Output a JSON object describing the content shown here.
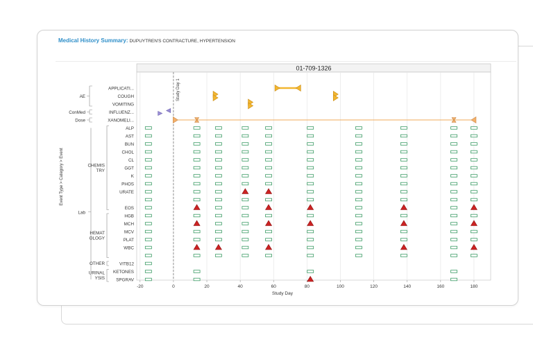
{
  "header": {
    "label": "Medical History Summary:",
    "value": "DUPUYTREN'S CONTRACTURE, HYPERTENSION"
  },
  "chart_data": {
    "type": "scatter",
    "title": "01-709-1326",
    "xlabel": "Study Day",
    "ylabel": "Event Type > Category > Event",
    "xlim": [
      -22,
      190
    ],
    "xticks": [
      -20,
      0,
      20,
      40,
      60,
      80,
      100,
      120,
      140,
      160,
      180
    ],
    "reference_line": {
      "x": 0,
      "label": "Study Day 1"
    },
    "grid": true,
    "colors": {
      "ae": "#f2b630",
      "ae_stroke": "#c98a12",
      "conmed": "#9b8fd6",
      "conmed_stroke": "#6a5fae",
      "dose": "#f4b06a",
      "dose_line": "#f0a858",
      "lab_normal": "#3a9b63",
      "lab_high": "#cc2222",
      "grid": "#e6e6e6",
      "frame": "#bdbdbd"
    },
    "groups": [
      {
        "type": "AE",
        "category": "",
        "rows": [
          0,
          2
        ]
      },
      {
        "type": "ConMed",
        "category": "",
        "rows": [
          3,
          3
        ]
      },
      {
        "type": "Dose",
        "category": "",
        "rows": [
          4,
          4
        ]
      },
      {
        "type": "Lab",
        "category": "CHEMIS TRY",
        "rows": [
          5,
          15
        ]
      },
      {
        "type": "",
        "category": "HEMAT OLOGY",
        "rows": [
          16,
          21
        ]
      },
      {
        "type": "",
        "category": "OTHER",
        "rows": [
          22,
          22
        ]
      },
      {
        "type": "",
        "category": "URINAL YSIS",
        "rows": [
          23,
          24
        ]
      }
    ],
    "lab_type": "Lab",
    "events": [
      "APPLICATI...",
      "COUGH",
      "VOMITING",
      "INFLUENZ...",
      "XANOMELI...",
      "ALP",
      "AST",
      "BUN",
      "CHOL",
      "CL",
      "GGT",
      "K",
      "PHOS",
      "URATE",
      "",
      "EOS",
      "HGB",
      "MCH",
      "MCV",
      "PLAT",
      "WBC",
      "",
      "VITB12",
      "KETONES",
      "SPGRAV"
    ],
    "ae_events": [
      {
        "row": 0,
        "start": 62,
        "end": 75
      },
      {
        "row": 1,
        "start": 25,
        "end": 25
      },
      {
        "row": 2,
        "start": 46,
        "end": 46
      },
      {
        "row": 1,
        "start": 97,
        "end": 97
      }
    ],
    "conmed_events": [
      {
        "row": 3,
        "start": -8,
        "end": -3
      }
    ],
    "dose": {
      "row": 4,
      "start": 1,
      "end": 180
    },
    "lab_visits": [
      -15,
      14,
      27,
      43,
      57,
      82,
      111,
      138,
      168,
      180
    ],
    "lab_extra": [
      {
        "day": -15,
        "rows": [
          22,
          23,
          24
        ]
      },
      {
        "day": 14,
        "rows": [
          23,
          24
        ]
      },
      {
        "day": 82,
        "rows": [
          23,
          24
        ]
      },
      {
        "day": 168,
        "rows": [
          23,
          24
        ]
      }
    ],
    "lab_high": [
      {
        "day": 43,
        "row": 13
      },
      {
        "day": 57,
        "row": 13
      },
      {
        "day": 14,
        "row": 15
      },
      {
        "day": 57,
        "row": 15
      },
      {
        "day": 82,
        "row": 15
      },
      {
        "day": 138,
        "row": 15
      },
      {
        "day": 180,
        "row": 15
      },
      {
        "day": 14,
        "row": 17
      },
      {
        "day": 57,
        "row": 17
      },
      {
        "day": 82,
        "row": 17
      },
      {
        "day": 138,
        "row": 17
      },
      {
        "day": 180,
        "row": 17
      },
      {
        "day": 14,
        "row": 20
      },
      {
        "day": 27,
        "row": 20
      },
      {
        "day": 57,
        "row": 20
      },
      {
        "day": 138,
        "row": 20
      },
      {
        "day": 180,
        "row": 20
      },
      {
        "day": 82,
        "row": 24
      }
    ]
  }
}
